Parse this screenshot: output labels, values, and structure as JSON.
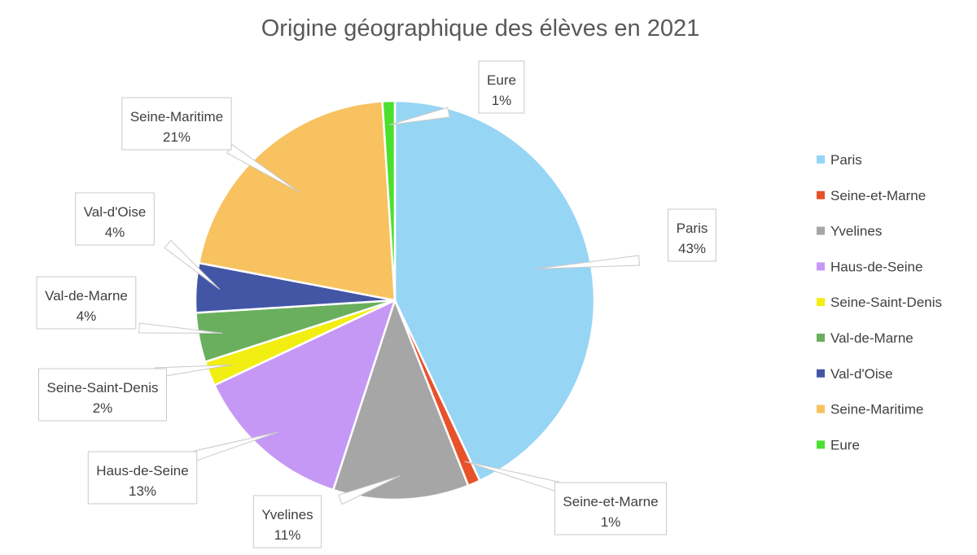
{
  "chart_data": {
    "type": "pie",
    "title": "Origine géographique des élèves en 2021",
    "categories": [
      "Paris",
      "Seine-et-Marne",
      "Yvelines",
      "Haus-de-Seine",
      "Seine-Saint-Denis",
      "Val-de-Marne",
      "Val-d'Oise",
      "Seine-Maritime",
      "Eure"
    ],
    "values": [
      43,
      1,
      11,
      13,
      2,
      4,
      4,
      21,
      1
    ],
    "data_labels": [
      "43%",
      "1%",
      "11%",
      "13%",
      "2%",
      "4%",
      "4%",
      "21%",
      "1%"
    ],
    "colors": [
      "#97D5F4",
      "#E8522A",
      "#A6A6A6",
      "#C698F5",
      "#F2EE12",
      "#6AAF5E",
      "#4356A6",
      "#F7C25F",
      "#4BE02E"
    ],
    "legend_position": "right",
    "start_angle": "12 o'clock",
    "direction": "clockwise"
  }
}
